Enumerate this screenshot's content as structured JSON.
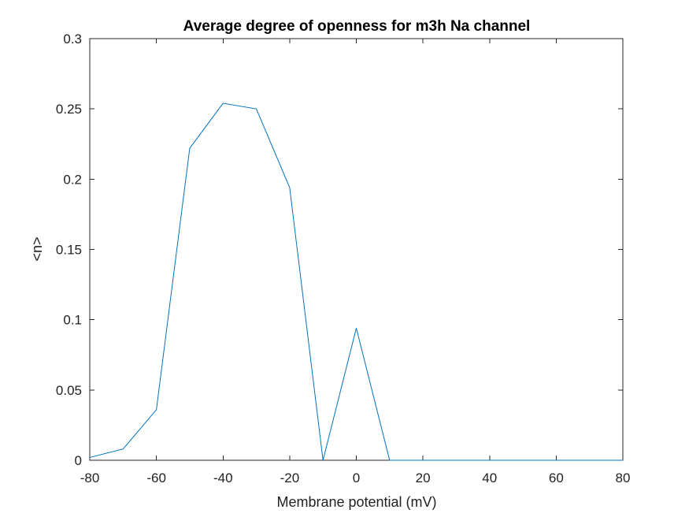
{
  "chart_data": {
    "type": "line",
    "title": "Average degree of openness for m3h Na channel",
    "xlabel": "Membrane potential (mV)",
    "ylabel": "<n>",
    "xlim": [
      -80,
      80
    ],
    "ylim": [
      0,
      0.3
    ],
    "xticks": [
      -80,
      -60,
      -40,
      -20,
      0,
      20,
      40,
      60,
      80
    ],
    "yticks": [
      0,
      0.05,
      0.1,
      0.15,
      0.2,
      0.25,
      0.3
    ],
    "xtick_labels": [
      "-80",
      "-60",
      "-40",
      "-20",
      "0",
      "20",
      "40",
      "60",
      "80"
    ],
    "ytick_labels": [
      "0",
      "0.05",
      "0.1",
      "0.15",
      "0.2",
      "0.25",
      "0.3"
    ],
    "grid": false,
    "series": [
      {
        "color": "#0072BD",
        "x": [
          -80,
          -70,
          -60,
          -50,
          -40,
          -30,
          -20,
          -10,
          0,
          10,
          20,
          30,
          40,
          50,
          60,
          70,
          80
        ],
        "y": [
          0.002,
          0.008,
          0.036,
          0.222,
          0.254,
          0.25,
          0.194,
          0.0,
          0.094,
          0.0,
          0.0,
          0.0,
          0.0,
          0.0,
          0.0,
          0.0,
          0.0
        ]
      }
    ]
  }
}
